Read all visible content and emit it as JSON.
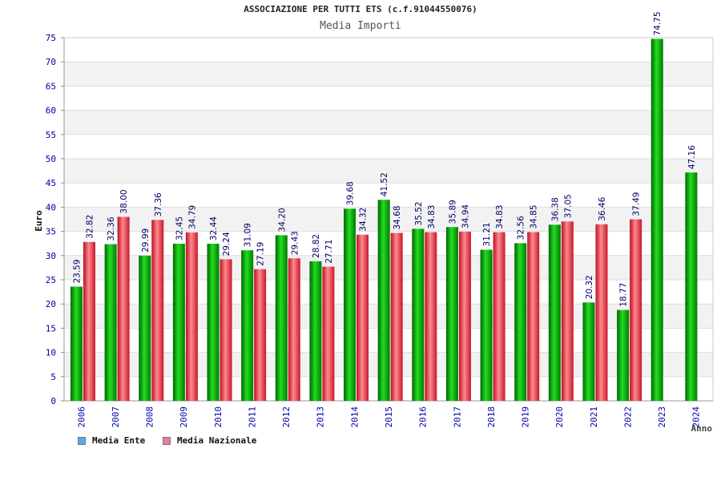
{
  "title": "ASSOCIAZIONE PER TUTTI ETS (c.f.91044550076)",
  "subtitle": "Media Importi",
  "colors": {
    "ente": "#00aa00",
    "nazionale": "#e8303a",
    "legend_ente": "#5aa7ee",
    "legend_nazionale": "#e87aa4",
    "axis_text": "#0000aa",
    "label_text": "#000066"
  },
  "legend": {
    "ente": "Media Ente",
    "nazionale": "Media Nazionale"
  },
  "chart_data": {
    "type": "bar",
    "title": "ASSOCIAZIONE PER TUTTI ETS (c.f.91044550076)",
    "subtitle": "Media Importi",
    "xlabel": "Anno",
    "ylabel": "Euro",
    "ylim": [
      0,
      75
    ],
    "yticks": [
      0,
      5,
      10,
      15,
      20,
      25,
      30,
      35,
      40,
      45,
      50,
      55,
      60,
      65,
      70,
      75
    ],
    "categories": [
      "2006",
      "2007",
      "2008",
      "2009",
      "2010",
      "2011",
      "2012",
      "2013",
      "2014",
      "2015",
      "2016",
      "2017",
      "2018",
      "2019",
      "2020",
      "2021",
      "2022",
      "2023",
      "2024"
    ],
    "series": [
      {
        "name": "Media Ente",
        "labels": [
          "23.59",
          "32.36",
          "29.99",
          "32.45",
          "32.44",
          "31.09",
          "34.20",
          "28.82",
          "39.68",
          "41.52",
          "35.52",
          "35.89",
          "31.21",
          "32.56",
          "36.38",
          "20.32",
          "18.77",
          "74.75",
          "47.16"
        ],
        "values": [
          23.59,
          32.36,
          29.99,
          32.45,
          32.44,
          31.09,
          34.2,
          28.82,
          39.68,
          41.52,
          35.52,
          35.89,
          31.21,
          32.56,
          36.38,
          20.32,
          18.77,
          74.75,
          47.16
        ]
      },
      {
        "name": "Media Nazionale",
        "labels": [
          "32.82",
          "38.00",
          "37.36",
          "34.79",
          "29.24",
          "27.19",
          "29.43",
          "27.71",
          "34.32",
          "34.68",
          "34.83",
          "34.94",
          "34.83",
          "34.85",
          "37.05",
          "36.46",
          "37.49",
          null,
          null
        ],
        "values": [
          32.82,
          38.0,
          37.36,
          34.79,
          29.24,
          27.19,
          29.43,
          27.71,
          34.32,
          34.68,
          34.83,
          34.94,
          34.83,
          34.85,
          37.05,
          36.46,
          37.49,
          null,
          null
        ]
      }
    ],
    "grid": true,
    "legend_position": "bottom-left"
  }
}
